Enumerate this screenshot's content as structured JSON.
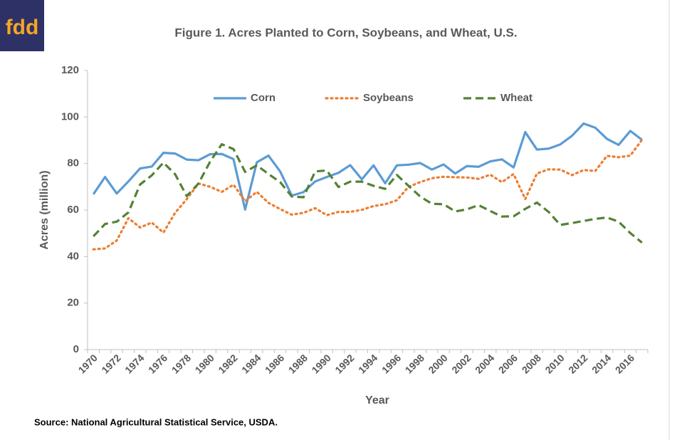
{
  "logo": "fdd",
  "source": "Source: National Agricultural Statistical Service, USDA.",
  "chart_data": {
    "type": "line",
    "title": "Figure 1. Acres Planted to Corn, Soybeans, and Wheat, U.S.",
    "x_label": "Year",
    "y_label": "Acres (million)",
    "categories": [
      "1970",
      null,
      "1972",
      null,
      "1974",
      null,
      "1976",
      null,
      "1978",
      null,
      "1980",
      null,
      "1982",
      null,
      "1984",
      null,
      "1986",
      null,
      "1988",
      null,
      "1990",
      null,
      "1992",
      null,
      "1994",
      null,
      "1996",
      null,
      "1998",
      null,
      "2000",
      null,
      "2002",
      null,
      "2004",
      null,
      "2006",
      null,
      "2008",
      null,
      "2010",
      null,
      "2012",
      null,
      "2014",
      null,
      "2016",
      null
    ],
    "series": [
      {
        "name": "Corn",
        "color": "#5b9bd5",
        "style": "solid",
        "values": [
          66.8,
          74.2,
          67.1,
          72.3,
          77.9,
          78.7,
          84.6,
          84.3,
          81.7,
          81.4,
          84.0,
          84.1,
          81.9,
          60.2,
          80.5,
          83.4,
          76.6,
          66.2,
          67.7,
          72.3,
          74.2,
          76.0,
          79.3,
          73.2,
          79.2,
          71.5,
          79.2,
          79.5,
          80.2,
          77.4,
          79.6,
          75.7,
          78.9,
          78.6,
          80.9,
          81.8,
          78.3,
          93.5,
          86.0,
          86.4,
          88.2,
          91.9,
          97.2,
          95.4,
          90.6,
          88.0,
          94.0,
          90.2
        ]
      },
      {
        "name": "Soybeans",
        "color": "#ed7d31",
        "style": "dotted",
        "values": [
          43.1,
          43.5,
          46.9,
          56.5,
          52.5,
          54.6,
          50.3,
          58.8,
          64.7,
          71.4,
          70.0,
          67.8,
          70.9,
          63.8,
          67.8,
          63.1,
          60.4,
          58.0,
          58.8,
          60.8,
          57.8,
          59.2,
          59.2,
          60.1,
          61.7,
          62.5,
          64.2,
          70.0,
          72.0,
          73.7,
          74.3,
          74.1,
          74.0,
          73.4,
          75.2,
          72.0,
          75.5,
          64.7,
          75.7,
          77.5,
          77.4,
          75.0,
          77.2,
          76.8,
          83.3,
          82.7,
          83.4,
          90.2
        ]
      },
      {
        "name": "Wheat",
        "color": "#548235",
        "style": "dashed",
        "values": [
          48.7,
          54.0,
          55.0,
          59.0,
          71.0,
          74.9,
          80.4,
          75.4,
          66.0,
          71.4,
          80.8,
          88.3,
          86.2,
          76.4,
          79.2,
          75.5,
          72.0,
          65.8,
          65.5,
          76.6,
          77.0,
          69.9,
          72.2,
          72.2,
          70.4,
          69.1,
          75.1,
          70.4,
          65.8,
          62.7,
          62.5,
          59.4,
          60.3,
          62.1,
          59.6,
          57.2,
          57.3,
          60.5,
          63.2,
          59.2,
          53.6,
          54.4,
          55.3,
          56.2,
          56.8,
          55.0,
          50.1,
          46.0
        ]
      }
    ],
    "ylim": [
      0,
      120
    ],
    "yticks": [
      0,
      20,
      40,
      60,
      80,
      100,
      120
    ],
    "legend": "top",
    "grid": false
  }
}
